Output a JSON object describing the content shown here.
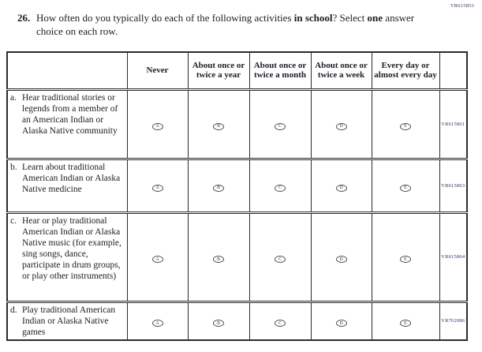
{
  "page": {
    "code_top_right": "VR615853"
  },
  "question": {
    "number": "26.",
    "segments": [
      {
        "text": "How often do you typically do each of the following activities "
      },
      {
        "text": "in school"
      },
      {
        "text": "? Select "
      },
      {
        "text": "one"
      },
      {
        "text": " answer choice on each row."
      }
    ]
  },
  "table": {
    "columns": [
      "Never",
      "About once or twice a year",
      "About once or twice a month",
      "About once or twice a week",
      "Every day or almost every day"
    ],
    "option_letters": [
      "A",
      "B",
      "C",
      "D",
      "E"
    ],
    "rows": [
      {
        "letter": "a.",
        "text": "Hear traditional stories or legends from a member of an American Indian or Alaska Native community",
        "code": "VR615861"
      },
      {
        "letter": "b.",
        "text": "Learn about traditional American Indian or Alaska Native medicine",
        "code": "VR615863"
      },
      {
        "letter": "c.",
        "text": "Hear or play traditional American Indian or Alaska Native music (for example, sing songs, dance, participate in drum groups, or play other instruments)",
        "code": "VR615864"
      },
      {
        "letter": "d.",
        "text": "Play traditional American Indian or Alaska Native games",
        "code": "VR762086"
      }
    ]
  },
  "colors": {
    "text": "#1d1d26",
    "code": "#35366a",
    "border": "#2b2b2b"
  }
}
